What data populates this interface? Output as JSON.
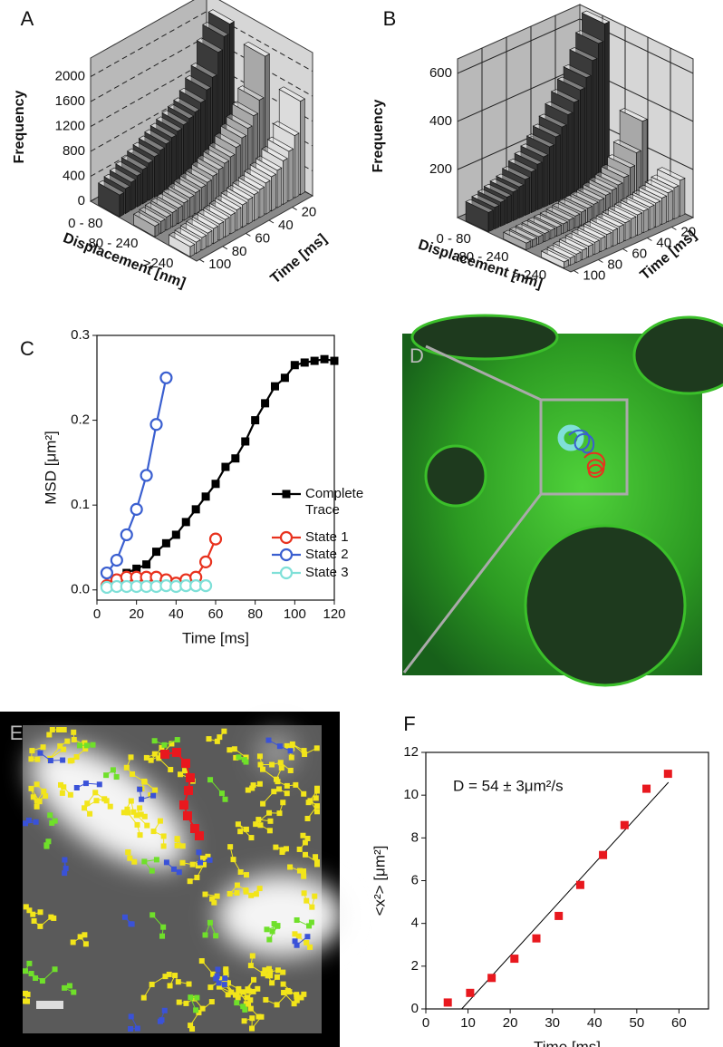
{
  "panel_labels": [
    "A",
    "B",
    "C",
    "D",
    "E",
    "F"
  ],
  "chart_data": [
    {
      "type": "bar3d",
      "series": [
        {
          "name": "0 - 80",
          "color": "#3a3a3a",
          "values": [
            2100,
            1950,
            1750,
            1400,
            1250,
            1100,
            1000,
            950,
            900,
            850,
            800,
            750,
            700,
            650,
            600,
            550,
            500,
            450,
            400,
            350
          ]
        },
        {
          "name": "80 - 240",
          "color": "#a8a8a8",
          "values": [
            1900,
            1250,
            1050,
            900,
            800,
            700,
            600,
            550,
            500,
            450,
            400,
            370,
            340,
            310,
            280,
            250,
            230,
            210,
            190,
            170
          ]
        },
        {
          "name": ">240",
          "color": "#dcdcdc",
          "values": [
            1500,
            1000,
            800,
            700,
            600,
            550,
            500,
            450,
            420,
            390,
            360,
            330,
            300,
            280,
            260,
            240,
            220,
            200,
            180,
            160
          ]
        }
      ],
      "x": [
        5,
        10,
        15,
        20,
        25,
        30,
        35,
        40,
        45,
        50,
        55,
        60,
        65,
        70,
        75,
        80,
        85,
        90,
        95,
        100
      ],
      "xlim": [
        2.5,
        102.5
      ],
      "xticks": [
        20,
        40,
        60,
        80,
        100
      ],
      "xlabel": "Time [ms]",
      "ylim": [
        0,
        2300
      ],
      "yticks": [
        0,
        400,
        800,
        1200,
        1600,
        2000
      ],
      "ylabel": "Frequency",
      "zlabel": "Displacement [nm]",
      "grid": "dashed"
    },
    {
      "type": "bar3d",
      "series": [
        {
          "name": "0 - 80",
          "color": "#3a3a3a",
          "values": [
            650,
            580,
            520,
            460,
            420,
            380,
            340,
            300,
            270,
            240,
            210,
            190,
            170,
            150,
            130,
            120,
            110,
            100,
            90,
            80
          ]
        },
        {
          "name": "80 - 240",
          "color": "#a8a8a8",
          "values": [
            320,
            200,
            150,
            120,
            100,
            90,
            80,
            70,
            65,
            60,
            55,
            50,
            45,
            40,
            38,
            36,
            34,
            32,
            30,
            28
          ]
        },
        {
          "name": "> 240",
          "color": "#dcdcdc",
          "values": [
            150,
            130,
            120,
            110,
            100,
            95,
            90,
            85,
            80,
            75,
            70,
            65,
            60,
            55,
            50,
            45,
            40,
            35,
            30,
            25
          ]
        }
      ],
      "x": [
        5,
        10,
        15,
        20,
        25,
        30,
        35,
        40,
        45,
        50,
        55,
        60,
        65,
        70,
        75,
        80,
        85,
        90,
        95,
        100
      ],
      "xlim": [
        2.5,
        102.5
      ],
      "xticks": [
        20,
        40,
        60,
        80,
        100
      ],
      "xlabel": "Time [ms]",
      "ylim": [
        0,
        660
      ],
      "yticks": [
        200,
        400,
        600
      ],
      "ylabel": "Frequency",
      "zlabel": "Displacement [nm]",
      "grid": "solid"
    },
    {
      "type": "line",
      "xlim": [
        0,
        120
      ],
      "xticks": [
        0,
        20,
        40,
        60,
        80,
        100,
        120
      ],
      "xlabel": "Time [ms]",
      "ylim": [
        -0.012,
        0.3
      ],
      "yticks": [
        {
          "value": 0,
          "label": "0.0"
        },
        0.1,
        0.2,
        0.3
      ],
      "ylabel": "MSD [μm²]",
      "series": [
        {
          "name": "Complete Trace",
          "color": "#000000",
          "marker": "square",
          "x": [
            5,
            10,
            15,
            20,
            25,
            30,
            35,
            40,
            45,
            50,
            55,
            60,
            65,
            70,
            75,
            80,
            85,
            90,
            95,
            100,
            105,
            110,
            115,
            120
          ],
          "values": [
            0.003,
            0.012,
            0.02,
            0.025,
            0.03,
            0.045,
            0.055,
            0.065,
            0.08,
            0.095,
            0.11,
            0.125,
            0.145,
            0.155,
            0.175,
            0.2,
            0.22,
            0.24,
            0.25,
            0.265,
            0.268,
            0.27,
            0.272,
            0.27
          ]
        },
        {
          "name": "State 1",
          "color": "#e8321e",
          "marker": "circle",
          "x": [
            5,
            10,
            15,
            20,
            25,
            30,
            35,
            40,
            45,
            50,
            55,
            60
          ],
          "values": [
            0.005,
            0.012,
            0.015,
            0.015,
            0.015,
            0.015,
            0.012,
            0.008,
            0.012,
            0.015,
            0.033,
            0.06
          ]
        },
        {
          "name": "State 2",
          "color": "#3a5fd0",
          "marker": "circle",
          "x": [
            5,
            10,
            15,
            20,
            25,
            30,
            35
          ],
          "values": [
            0.02,
            0.035,
            0.065,
            0.095,
            0.135,
            0.195,
            0.25
          ]
        },
        {
          "name": "State 3",
          "color": "#7fe0d8",
          "marker": "circle",
          "x": [
            5,
            10,
            15,
            20,
            25,
            30,
            35,
            40,
            45,
            50,
            55
          ],
          "values": [
            0.003,
            0.004,
            0.004,
            0.004,
            0.004,
            0.004,
            0.005,
            0.004,
            0.005,
            0.005,
            0.005
          ]
        }
      ]
    },
    {
      "type": "scatter",
      "xlim": [
        0,
        67
      ],
      "xticks": [
        0,
        10,
        20,
        30,
        40,
        50,
        60
      ],
      "xlabel": "Time [ms]",
      "ylim": [
        0,
        12
      ],
      "yticks": [
        0,
        2,
        4,
        6,
        8,
        10,
        12
      ],
      "ylabel": "<x²> [μm²]",
      "annotation": "D = 54 ± 3μm²/s",
      "series": [
        {
          "color": "#e8181e",
          "marker": "square",
          "x": [
            5.2,
            10.5,
            15.6,
            21,
            26.2,
            31.5,
            36.6,
            42,
            47.1,
            52.3,
            57.4
          ],
          "values": [
            0.3,
            0.75,
            1.45,
            2.35,
            3.3,
            4.35,
            5.8,
            7.2,
            8.6,
            10.3,
            11
          ]
        }
      ],
      "fit": {
        "color": "#000000",
        "x": [
          8.5,
          57.5
        ],
        "values": [
          0,
          10.6
        ]
      }
    }
  ]
}
